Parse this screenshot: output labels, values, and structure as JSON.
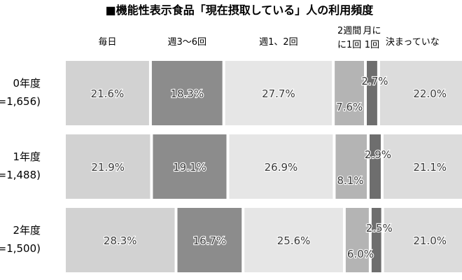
{
  "chart_data": {
    "type": "bar",
    "orientation": "horizontal",
    "stacked": true,
    "normalized": true,
    "title": "■機能性表示食品「現在摂取している」人の利用頻度",
    "series_headers": [
      {
        "name": "毎日"
      },
      {
        "name": "週3〜6回"
      },
      {
        "name": "週1、2回"
      },
      {
        "name": "2週間に1回",
        "lines": [
          "2週間",
          "に1回"
        ]
      },
      {
        "name": "月に1回",
        "lines": [
          "月に",
          "1回"
        ]
      },
      {
        "name": "決まっていない",
        "shown": "決まっていな"
      }
    ],
    "rows": [
      {
        "label": "0年度",
        "sublabel": "=1,656)",
        "values": [
          21.6,
          18.3,
          27.7,
          7.6,
          2.7,
          22.0
        ],
        "value_labels": [
          "21.6%",
          "18.3%",
          "27.7%",
          "7.6%",
          "2.7%",
          "22.0%"
        ]
      },
      {
        "label": "1年度",
        "sublabel": "=1,488)",
        "values": [
          21.9,
          19.1,
          26.9,
          8.1,
          2.9,
          21.1
        ],
        "value_labels": [
          "21.9%",
          "19.1%",
          "26.9%",
          "8.1%",
          "2.9%",
          "21.1%"
        ]
      },
      {
        "label": "2年度",
        "sublabel": "=1,500)",
        "values": [
          28.3,
          16.7,
          25.6,
          6.0,
          2.5,
          21.0
        ],
        "value_labels": [
          "28.3%",
          "16.7%",
          "25.6%",
          "6.0%",
          "2.5%",
          "21.0%"
        ]
      }
    ],
    "colors": [
      "#d2d2d2",
      "#8c8c8c",
      "#e6e6e6",
      "#b4b4b4",
      "#6e6e6e",
      "#dcdcdc"
    ],
    "xlim": [
      0,
      100
    ],
    "legend": "top"
  }
}
